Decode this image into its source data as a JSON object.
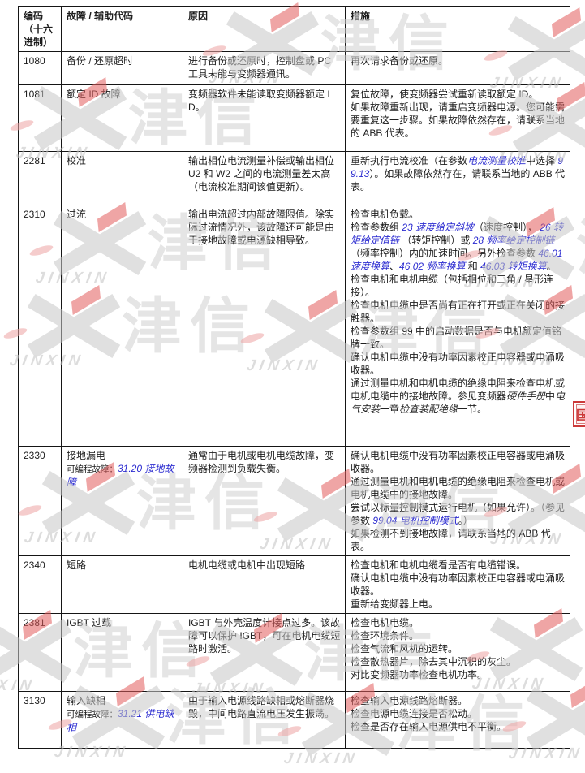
{
  "watermark": {
    "cn": "津信",
    "en": "JINXIN",
    "gray": "#c7c7c7",
    "red": "#e25c5c"
  },
  "stamp": {
    "glyph": "国",
    "color": "#cc3a3a"
  },
  "table": {
    "headers": [
      "编码\n（十六\n进制）",
      "故障 / 辅助代码",
      "原因",
      "措施"
    ],
    "rows": [
      {
        "code": "1080",
        "fault": [
          [
            "备份 / 还原超时"
          ]
        ],
        "cause": [
          [
            "进行备份或还原时，控制盘或 PC 工具未能与变频器通讯。"
          ]
        ],
        "action": [
          [
            "再次请求备份或还原。"
          ]
        ]
      },
      {
        "code": "1081",
        "fault": [
          [
            "额定 ID 故障"
          ]
        ],
        "cause": [
          [
            "变频器软件未能读取变频器额定 ID。"
          ]
        ],
        "action": [
          [
            "复位故障，使变频器尝试重新读取额定 ID。"
          ],
          [
            "如果故障重新出现，请重启变频器电源。您可能需要重复这一步骤。如果故障依然存在，请联系当地的 ABB 代表。"
          ]
        ]
      },
      {
        "code": "2281",
        "fault": [
          [
            "校准"
          ]
        ],
        "cause": [
          [
            "输出相位电流测量补偿或输出相位 U2 和 W2 之间的电流测量差太高（电流校准期间该值更新）。"
          ]
        ],
        "action": [
          [
            "重新执行电流校准（在参数",
            {
              "t": "电流测量校准",
              "s": "link"
            },
            "中选择 ",
            {
              "t": "99.13",
              "s": "link"
            },
            "）。如果故障依然存在，请联系当地的 ABB 代表。"
          ]
        ]
      },
      {
        "code": "2310",
        "fault": [
          [
            "过流"
          ]
        ],
        "cause": [
          [
            "输出电流超过内部故障限值。除实际过流情况外，该故障还可能是由于接地故障或电源缺相导致。"
          ]
        ],
        "action": [
          [
            "检查电机负载。"
          ],
          [
            "检查参数组 ",
            {
              "t": "23 速度给定斜坡",
              "s": "link"
            },
            "（速度控制）， ",
            {
              "t": "26 转矩给定值链",
              "s": "link"
            },
            " （转矩控制）或 ",
            {
              "t": "28 频率给定控制链",
              "s": "link"
            },
            " （频率控制）内的加速时间。另外检查参数 ",
            {
              "t": "46.01 速度换算",
              "s": "link"
            },
            "、",
            {
              "t": "46.02 频率换算",
              "s": "link"
            },
            " 和 ",
            {
              "t": "46.03 转矩换算",
              "s": "link"
            },
            "。"
          ],
          [
            "检查电机和电机电缆（包括相位和三角 / 星形连接）。"
          ],
          [
            "检查电机电缆中是否尚有正在打开或正在关闭的接触器。"
          ],
          [
            "检查参数组 99 中的启动数据是否与电机额定值铭牌一致。"
          ],
          [
            "确认电机电缆中没有功率因素校正电容器或电涌吸收器。"
          ],
          [
            "通过测量电机和电机电缆的绝缘电阻来检查电机或电机电缆中的接地故障。参见变频器",
            {
              "t": "硬件手册",
              "s": "em"
            },
            "中",
            {
              "t": "电气安装",
              "s": "em"
            },
            "一章",
            {
              "t": "检查装配绝缘",
              "s": "em"
            },
            "一节。"
          ]
        ]
      },
      {
        "code": "2330",
        "fault": [
          [
            "接地漏电"
          ],
          [
            {
              "t": "可编程故障：",
              "s": "note"
            },
            {
              "t": "31.20 接地故障",
              "s": "link"
            }
          ]
        ],
        "cause": [
          [
            "通常由于电机或电机电缆故障，变频器检测到负载失衡。"
          ]
        ],
        "action": [
          [
            "确认电机电缆中没有功率因素校正电容器或电涌吸收器。"
          ],
          [
            "通过测量电机和电机电缆的绝缘电阻来检查电机或电机电缆中的接地故障。"
          ],
          [
            "尝试以标量控制模式运行电机（如果允许）。（参见参数 ",
            {
              "t": "99.04 电机控制模式",
              "s": "link"
            },
            "。）"
          ],
          [
            "如果检测不到接地故障，请联系当地的 ABB 代表。"
          ]
        ]
      },
      {
        "code": "2340",
        "fault": [
          [
            "短路"
          ]
        ],
        "cause": [
          [
            "电机电缆或电机中出现短路"
          ]
        ],
        "action": [
          [
            "检查电机和电机电缆看是否有电缆错误。"
          ],
          [
            "确认电机电缆中没有功率因素校正电容器或电涌吸收器。"
          ],
          [
            "重新给变频器上电。"
          ]
        ]
      },
      {
        "code": "2381",
        "fault": [
          [
            "IGBT 过载"
          ]
        ],
        "cause": [
          [
            "IGBT 与外壳温度计接点过多。该故障可以保护 IGBT，可在电机电缆短路时激活。"
          ]
        ],
        "action": [
          [
            "检查电机电缆。"
          ],
          [
            "检查环境条件。"
          ],
          [
            "检查气流和风机的运转。"
          ],
          [
            "检查散热器片，除去其中沉积的灰尘。"
          ],
          [
            "对比变频器功率检查电机功率。"
          ]
        ]
      },
      {
        "code": "3130",
        "fault": [
          [
            "输入缺相"
          ],
          [
            {
              "t": "可编程故障：",
              "s": "note"
            },
            {
              "t": "31.21 供电缺相",
              "s": "link"
            }
          ]
        ],
        "cause": [
          [
            "由于输入电源线路缺相或熔断器烧毁，中间电路直流电压发生振荡。"
          ]
        ],
        "action": [
          [
            "检查输入电源线路熔断器。"
          ],
          [
            "检查电源电缆连接是否松动。"
          ],
          [
            "检查是否存在输入电源供电不平衡。"
          ]
        ]
      }
    ]
  }
}
